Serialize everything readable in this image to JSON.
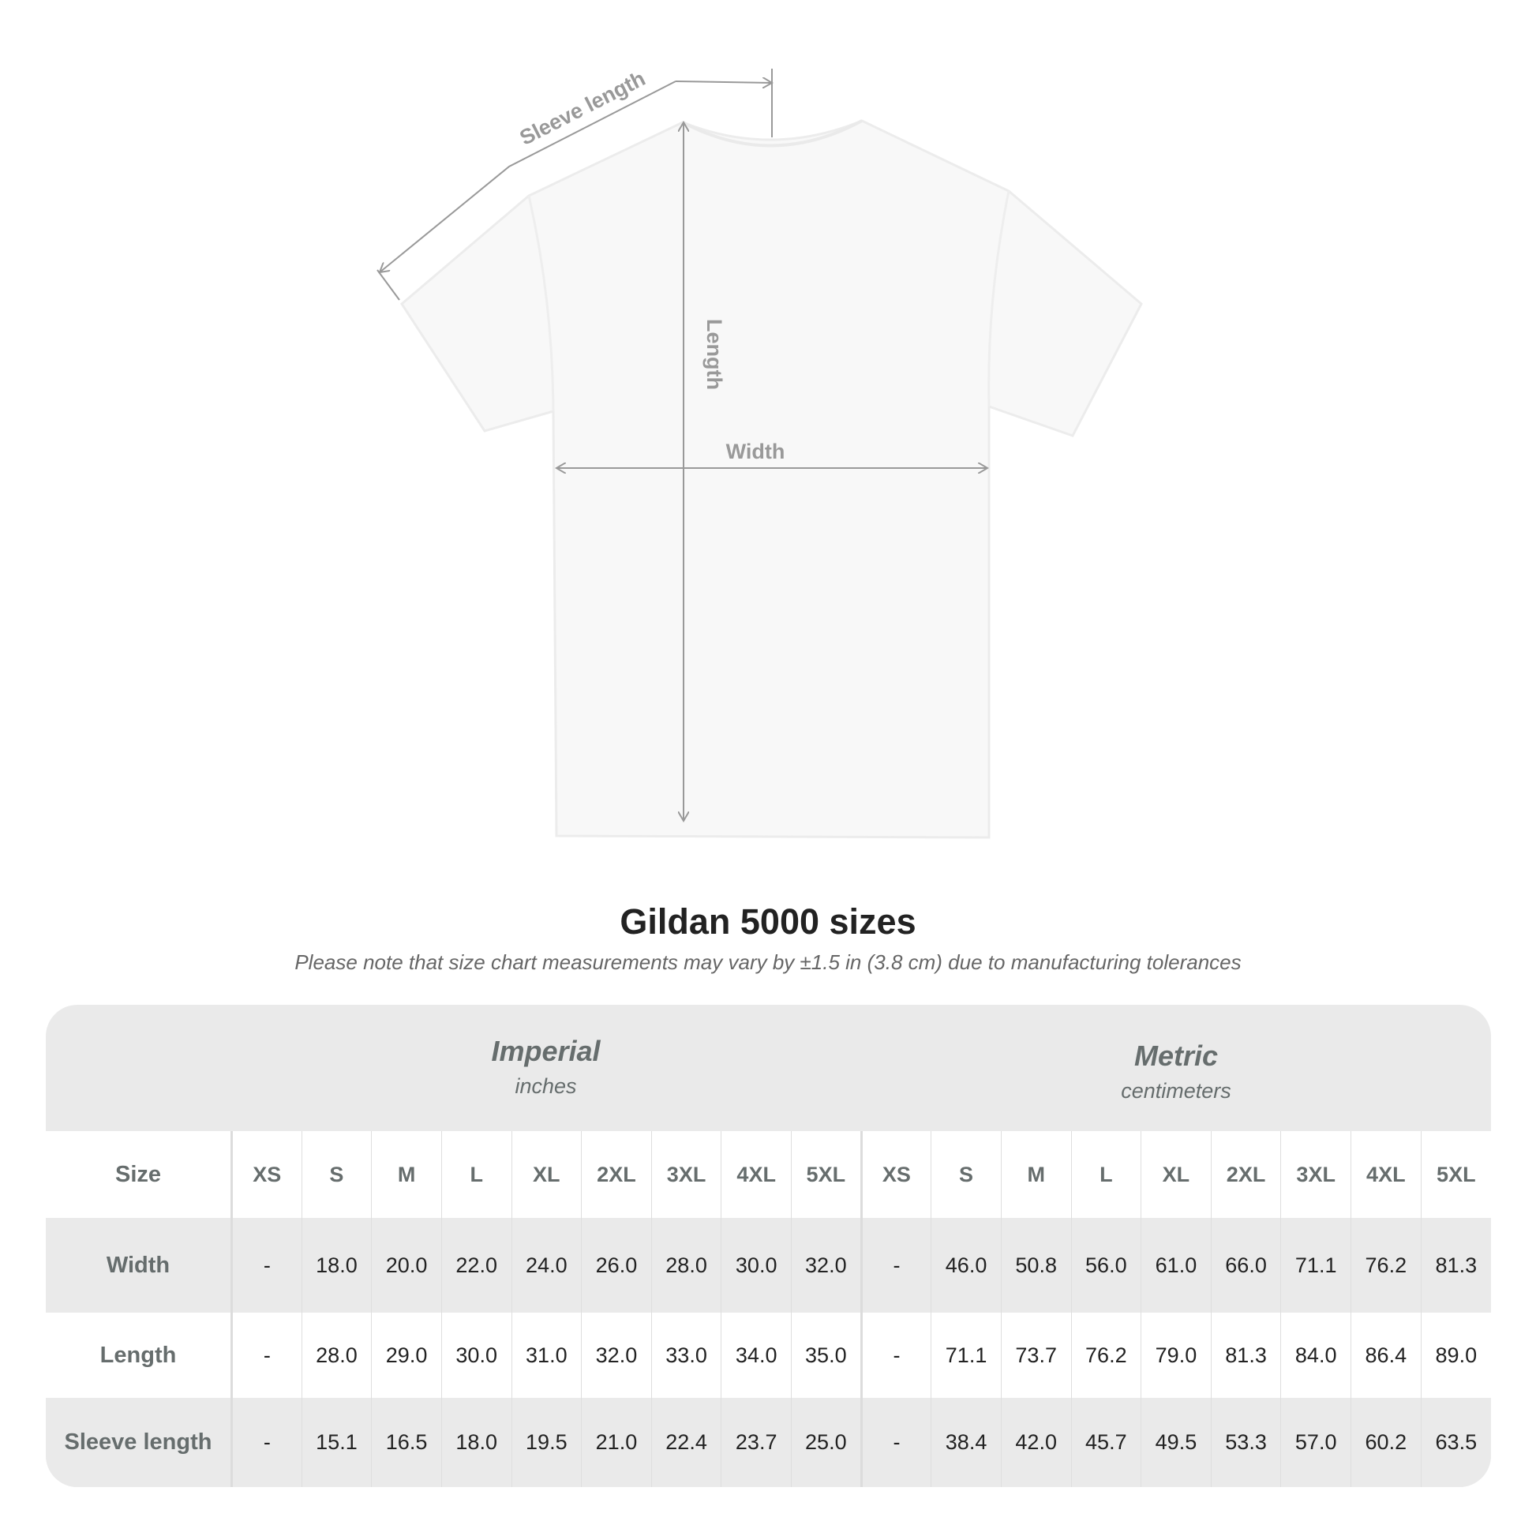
{
  "diagram": {
    "labels": {
      "sleeve": "Sleeve length",
      "length": "Length",
      "width": "Width"
    }
  },
  "title": "Gildan 5000 sizes",
  "note": "Please note that size chart measurements may vary by ±1.5 in (3.8 cm) due to manufacturing tolerances",
  "table": {
    "imperial": {
      "name": "Imperial",
      "unit": "inches"
    },
    "metric": {
      "name": "Metric",
      "unit": "centimeters"
    },
    "size_label": "Size",
    "sizes": [
      "XS",
      "S",
      "M",
      "L",
      "XL",
      "2XL",
      "3XL",
      "4XL",
      "5XL"
    ],
    "rows": [
      {
        "label": "Width",
        "imperial": [
          "-",
          "18.0",
          "20.0",
          "22.0",
          "24.0",
          "26.0",
          "28.0",
          "30.0",
          "32.0"
        ],
        "metric": [
          "-",
          "46.0",
          "50.8",
          "56.0",
          "61.0",
          "66.0",
          "71.1",
          "76.2",
          "81.3"
        ]
      },
      {
        "label": "Length",
        "imperial": [
          "-",
          "28.0",
          "29.0",
          "30.0",
          "31.0",
          "32.0",
          "33.0",
          "34.0",
          "35.0"
        ],
        "metric": [
          "-",
          "71.1",
          "73.7",
          "76.2",
          "79.0",
          "81.3",
          "84.0",
          "86.4",
          "89.0"
        ]
      },
      {
        "label": "Sleeve length",
        "imperial": [
          "-",
          "15.1",
          "16.5",
          "18.0",
          "19.5",
          "21.0",
          "22.4",
          "23.7",
          "25.0"
        ],
        "metric": [
          "-",
          "38.4",
          "42.0",
          "45.7",
          "49.5",
          "53.3",
          "57.0",
          "60.2",
          "63.5"
        ]
      }
    ]
  },
  "colors": {
    "header_text": "#666d6d",
    "band": "#eaeaea",
    "annotation": "#999999"
  }
}
